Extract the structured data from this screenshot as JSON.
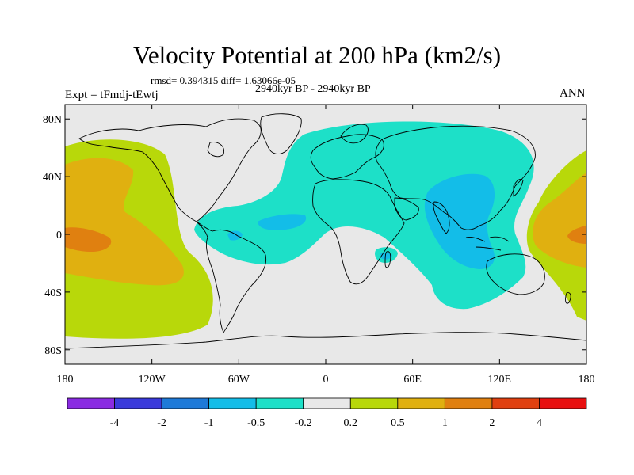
{
  "title": "Velocity Potential at 200 hPa (km2/s)",
  "stats": "rmsd= 0.394315 diff= 1.63066e-05",
  "experiment": "Expt = tFmdj-tEwtj",
  "period": "2940kyr BP - 2940kyr BP",
  "season": "ANN",
  "map": {
    "projection": "cylindrical-equidistant",
    "lon_range": [
      -180,
      180
    ],
    "lat_range": [
      -90,
      90
    ],
    "lat_ticks": [
      {
        "value": 80,
        "label": "80N"
      },
      {
        "value": 40,
        "label": "40N"
      },
      {
        "value": 0,
        "label": "0"
      },
      {
        "value": -40,
        "label": "40S"
      },
      {
        "value": -80,
        "label": "80S"
      }
    ],
    "lon_ticks": [
      {
        "value": -180,
        "label": "180"
      },
      {
        "value": -120,
        "label": "120W"
      },
      {
        "value": -60,
        "label": "60W"
      },
      {
        "value": 0,
        "label": "0"
      },
      {
        "value": 60,
        "label": "60E"
      },
      {
        "value": 120,
        "label": "120E"
      },
      {
        "value": 180,
        "label": "180"
      }
    ]
  },
  "colorbar": {
    "colors": [
      "#8a2be2",
      "#3a3adb",
      "#1e7ad8",
      "#13bde8",
      "#1de0c8",
      "#e8e8e8",
      "#b8d80a",
      "#e0b010",
      "#e08010",
      "#e04010",
      "#e81010"
    ],
    "labels": [
      "-4",
      "-2",
      "-1",
      "-0.5",
      "-0.2",
      "0.2",
      "0.5",
      "1",
      "2",
      "4"
    ]
  }
}
